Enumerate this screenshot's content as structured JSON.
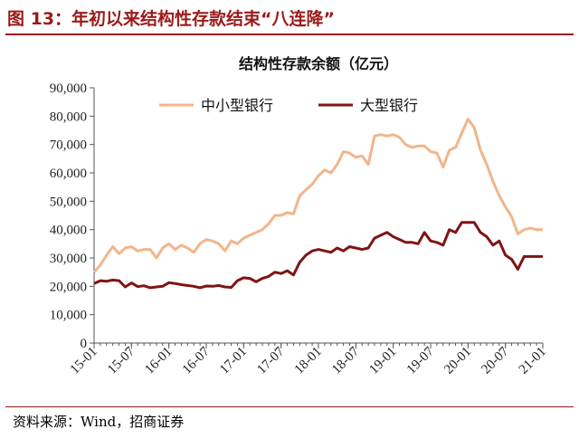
{
  "figure": {
    "title": "图 13：年初以来结构性存款结束“八连降”",
    "source": "资料来源：Wind，招商证券"
  },
  "colors": {
    "accent": "#9b1a1a",
    "small_medium": "#f2b58a",
    "large": "#7f1414"
  },
  "chart_data": {
    "type": "line",
    "title": "结构性存款余额（亿元）",
    "xlabel": "",
    "ylabel": "",
    "ylim": [
      0,
      90000
    ],
    "yticks": [
      0,
      10000,
      20000,
      30000,
      40000,
      50000,
      60000,
      70000,
      80000,
      90000
    ],
    "ytick_labels": [
      "0",
      "10,000",
      "20,000",
      "30,000",
      "40,000",
      "50,000",
      "60,000",
      "70,000",
      "80,000",
      "90,000"
    ],
    "xtick_labels": [
      "15-01",
      "15-07",
      "16-01",
      "16-07",
      "17-01",
      "17-07",
      "18-01",
      "18-07",
      "19-01",
      "19-07",
      "20-01",
      "20-07",
      "21-01"
    ],
    "legend_position": "top",
    "grid": false,
    "x": [
      "15-01",
      "15-02",
      "15-03",
      "15-04",
      "15-05",
      "15-06",
      "15-07",
      "15-08",
      "15-09",
      "15-10",
      "15-11",
      "15-12",
      "16-01",
      "16-02",
      "16-03",
      "16-04",
      "16-05",
      "16-06",
      "16-07",
      "16-08",
      "16-09",
      "16-10",
      "16-11",
      "16-12",
      "17-01",
      "17-02",
      "17-03",
      "17-04",
      "17-05",
      "17-06",
      "17-07",
      "17-08",
      "17-09",
      "17-10",
      "17-11",
      "17-12",
      "18-01",
      "18-02",
      "18-03",
      "18-04",
      "18-05",
      "18-06",
      "18-07",
      "18-08",
      "18-09",
      "18-10",
      "18-11",
      "18-12",
      "19-01",
      "19-02",
      "19-03",
      "19-04",
      "19-05",
      "19-06",
      "19-07",
      "19-08",
      "19-09",
      "19-10",
      "19-11",
      "19-12",
      "20-01",
      "20-02",
      "20-03",
      "20-04",
      "20-05",
      "20-06",
      "20-07",
      "20-08",
      "20-09",
      "20-10",
      "20-11",
      "20-12",
      "21-01"
    ],
    "series": [
      {
        "name": "中小型银行",
        "color": "#f2b58a",
        "values": [
          25000,
          27500,
          31000,
          34000,
          31500,
          33500,
          34000,
          32500,
          33000,
          33000,
          30000,
          33500,
          35000,
          33000,
          34500,
          33500,
          32000,
          35000,
          36500,
          36000,
          35000,
          32500,
          36000,
          35000,
          37000,
          38000,
          39000,
          40000,
          42000,
          45000,
          45000,
          46000,
          45500,
          52000,
          54000,
          56000,
          59000,
          61000,
          60000,
          63000,
          67500,
          67000,
          65500,
          66000,
          63000,
          73000,
          73500,
          73000,
          73500,
          72500,
          70000,
          69000,
          69500,
          69500,
          67500,
          67000,
          62000,
          68000,
          69000,
          74000,
          79000,
          76000,
          68000,
          63000,
          57000,
          52000,
          48000,
          44500,
          38500,
          40000,
          40500,
          40000,
          40000
        ],
        "note_len": 70
      },
      {
        "name": "大型银行",
        "color": "#7f1414",
        "values": [
          21000,
          22000,
          21800,
          22200,
          22000,
          19800,
          21200,
          19900,
          20200,
          19500,
          19800,
          20000,
          21300,
          21000,
          20600,
          20300,
          20000,
          19500,
          20100,
          20000,
          20300,
          19800,
          19600,
          22000,
          23000,
          22800,
          21600,
          22800,
          23500,
          25000,
          24500,
          25500,
          24000,
          28500,
          31000,
          32500,
          33000,
          32500,
          32000,
          33500,
          32500,
          34000,
          33500,
          33000,
          33500,
          37000,
          38000,
          39000,
          37500,
          36500,
          35500,
          35500,
          35000,
          39000,
          36000,
          35500,
          34500,
          40000,
          39000,
          42500,
          42500,
          42500,
          39000,
          37500,
          34500,
          36000,
          31000,
          29500,
          26000,
          30500,
          30500,
          30500,
          30500
        ]
      }
    ]
  }
}
